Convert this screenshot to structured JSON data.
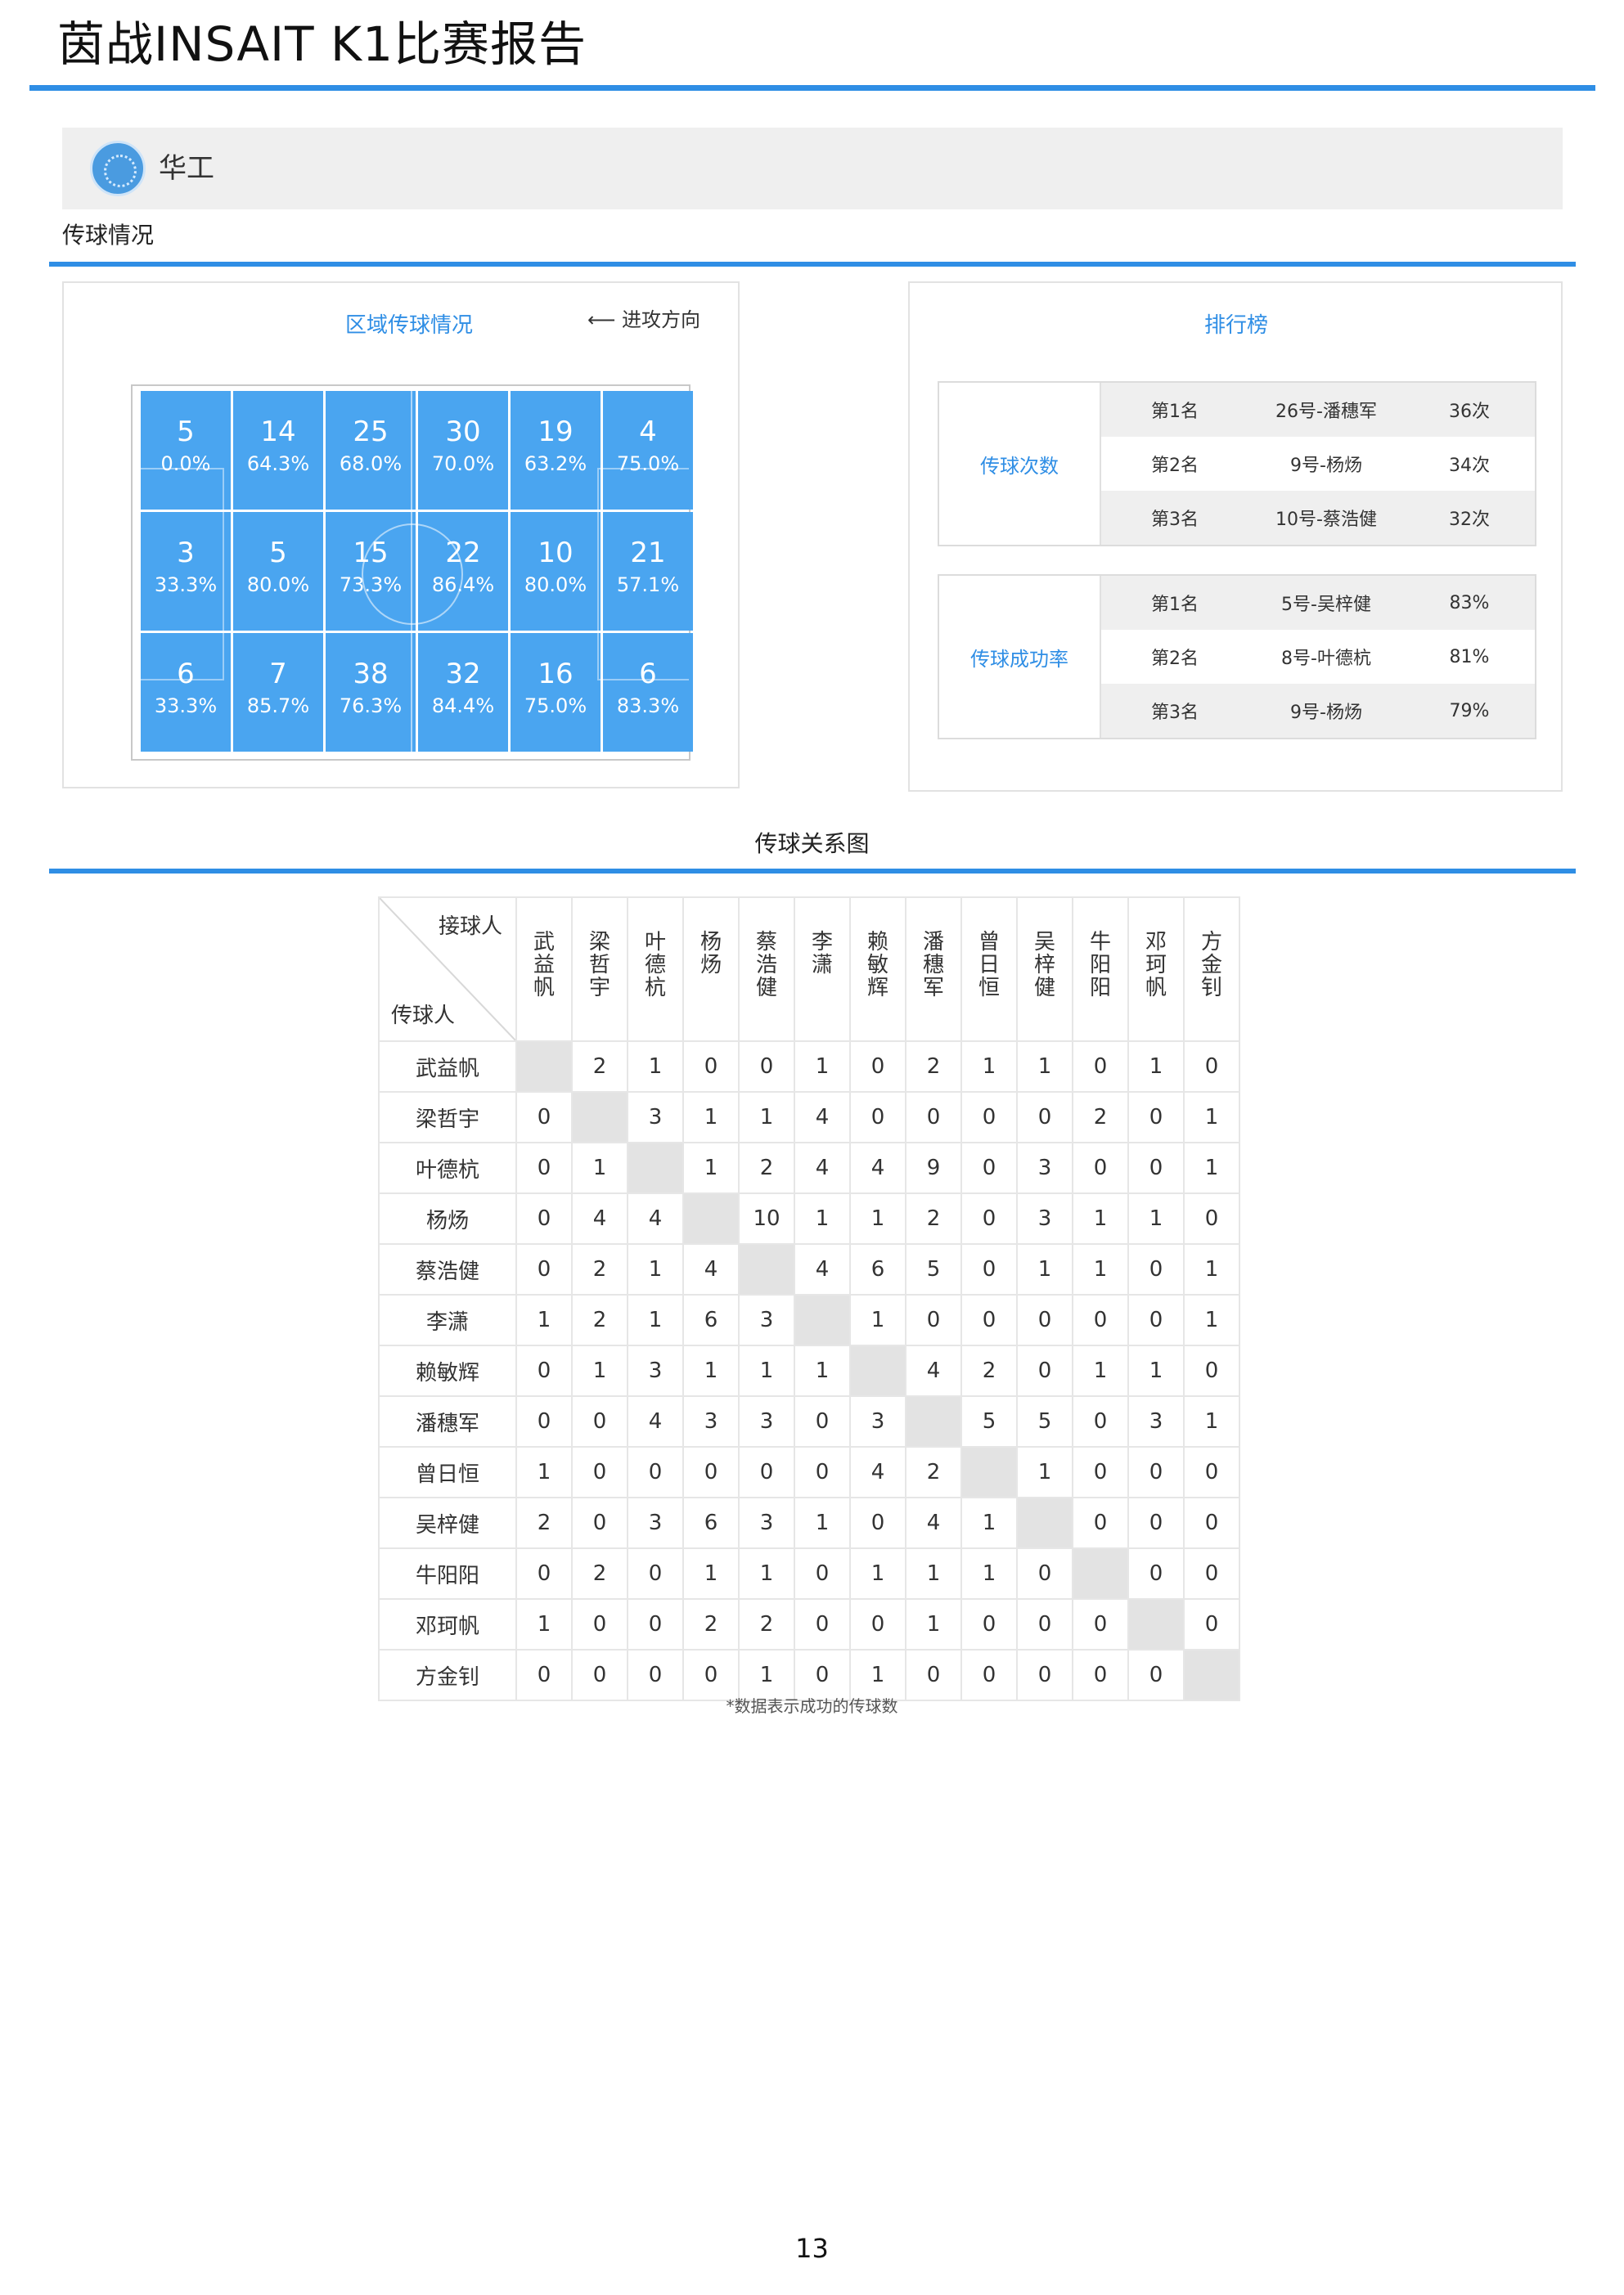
{
  "header": {
    "title": "茵战INSAIT K1比赛报告"
  },
  "team": {
    "name": "华工"
  },
  "sections": {
    "passing": "传球情况",
    "network": "传球关系图"
  },
  "zone_panel": {
    "title": "区域传球情况",
    "direction_label": "⟵ 进攻方向",
    "zones": [
      [
        {
          "count": "5",
          "pct": "0.0%"
        },
        {
          "count": "14",
          "pct": "64.3%"
        },
        {
          "count": "25",
          "pct": "68.0%"
        },
        {
          "count": "30",
          "pct": "70.0%"
        },
        {
          "count": "19",
          "pct": "63.2%"
        },
        {
          "count": "4",
          "pct": "75.0%"
        }
      ],
      [
        {
          "count": "3",
          "pct": "33.3%"
        },
        {
          "count": "5",
          "pct": "80.0%"
        },
        {
          "count": "15",
          "pct": "73.3%"
        },
        {
          "count": "22",
          "pct": "86.4%"
        },
        {
          "count": "10",
          "pct": "80.0%"
        },
        {
          "count": "21",
          "pct": "57.1%"
        }
      ],
      [
        {
          "count": "6",
          "pct": "33.3%"
        },
        {
          "count": "7",
          "pct": "85.7%"
        },
        {
          "count": "38",
          "pct": "76.3%"
        },
        {
          "count": "32",
          "pct": "84.4%"
        },
        {
          "count": "16",
          "pct": "75.0%"
        },
        {
          "count": "6",
          "pct": "83.3%"
        }
      ]
    ]
  },
  "ranking": {
    "title": "排行榜",
    "passes": {
      "label": "传球次数",
      "rows": [
        {
          "rank": "第1名",
          "player": "26号-潘穗军",
          "value": "36次"
        },
        {
          "rank": "第2名",
          "player": "9号-杨炀",
          "value": "34次"
        },
        {
          "rank": "第3名",
          "player": "10号-蔡浩健",
          "value": "32次"
        }
      ]
    },
    "success": {
      "label": "传球成功率",
      "rows": [
        {
          "rank": "第1名",
          "player": "5号-吴梓健",
          "value": "83%"
        },
        {
          "rank": "第2名",
          "player": "8号-叶德杭",
          "value": "81%"
        },
        {
          "rank": "第3名",
          "player": "9号-杨炀",
          "value": "79%"
        }
      ]
    }
  },
  "matrix": {
    "receiver_label": "接球人",
    "passer_label": "传球人",
    "players": [
      "武益帆",
      "梁哲宇",
      "叶德杭",
      "杨炀",
      "蔡浩健",
      "李潇",
      "赖敏辉",
      "潘穗军",
      "曾日恒",
      "吴梓健",
      "牛阳阳",
      "邓珂帆",
      "方金钊"
    ],
    "values": [
      [
        "",
        "2",
        "1",
        "0",
        "0",
        "1",
        "0",
        "2",
        "1",
        "1",
        "0",
        "1",
        "0"
      ],
      [
        "0",
        "",
        "3",
        "1",
        "1",
        "4",
        "0",
        "0",
        "0",
        "0",
        "2",
        "0",
        "1"
      ],
      [
        "0",
        "1",
        "",
        "1",
        "2",
        "4",
        "4",
        "9",
        "0",
        "3",
        "0",
        "0",
        "1"
      ],
      [
        "0",
        "4",
        "4",
        "",
        "10",
        "1",
        "1",
        "2",
        "0",
        "3",
        "1",
        "1",
        "0"
      ],
      [
        "0",
        "2",
        "1",
        "4",
        "",
        "4",
        "6",
        "5",
        "0",
        "1",
        "1",
        "0",
        "1"
      ],
      [
        "1",
        "2",
        "1",
        "6",
        "3",
        "",
        "1",
        "0",
        "0",
        "0",
        "0",
        "0",
        "1"
      ],
      [
        "0",
        "1",
        "3",
        "1",
        "1",
        "1",
        "",
        "4",
        "2",
        "0",
        "1",
        "1",
        "0"
      ],
      [
        "0",
        "0",
        "4",
        "3",
        "3",
        "0",
        "3",
        "",
        "5",
        "5",
        "0",
        "3",
        "1"
      ],
      [
        "1",
        "0",
        "0",
        "0",
        "0",
        "0",
        "4",
        "2",
        "",
        "1",
        "0",
        "0",
        "0"
      ],
      [
        "2",
        "0",
        "3",
        "6",
        "3",
        "1",
        "0",
        "4",
        "1",
        "",
        "0",
        "0",
        "0"
      ],
      [
        "0",
        "2",
        "0",
        "1",
        "1",
        "0",
        "1",
        "1",
        "1",
        "0",
        "",
        "0",
        "0"
      ],
      [
        "1",
        "0",
        "0",
        "2",
        "2",
        "0",
        "0",
        "1",
        "0",
        "0",
        "0",
        "",
        "0"
      ],
      [
        "0",
        "0",
        "0",
        "0",
        "1",
        "0",
        "1",
        "0",
        "0",
        "0",
        "0",
        "0",
        ""
      ]
    ],
    "note": "*数据表示成功的传球数"
  },
  "footer": {
    "page": "13"
  }
}
